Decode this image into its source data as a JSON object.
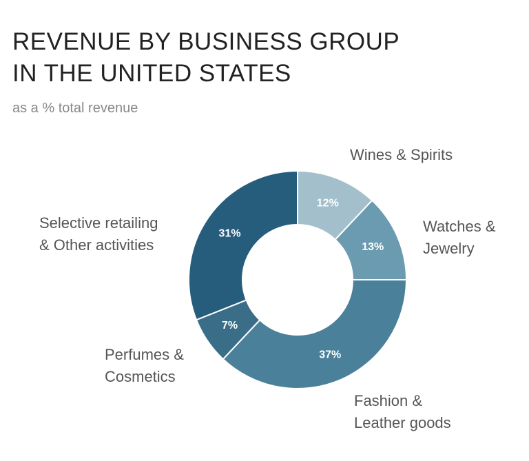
{
  "chart_data": {
    "type": "pie",
    "title": "REVENUE BY BUSINESS GROUP IN THE UNITED STATES",
    "subtitle": "as a % total revenue",
    "categories": [
      "Wines & Spirits",
      "Watches & Jewelry",
      "Fashion & Leather goods",
      "Perfumes & Cosmetics",
      "Selective retailing & Other activities"
    ],
    "values": [
      12,
      13,
      37,
      7,
      31
    ],
    "value_labels": [
      "12%",
      "13%",
      "37%",
      "7%",
      "31%"
    ],
    "colors": [
      "#a3bfcc",
      "#6b9bb0",
      "#4a8099",
      "#3a6d88",
      "#265c7c"
    ]
  }
}
